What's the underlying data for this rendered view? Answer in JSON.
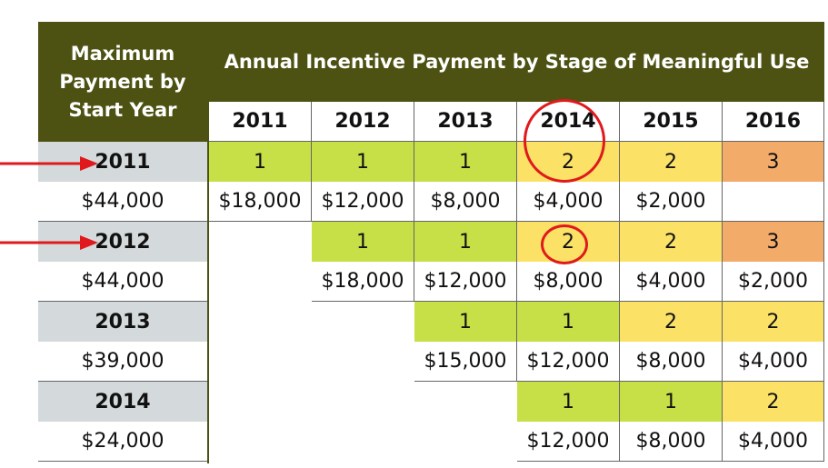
{
  "header": {
    "corner_label": "Maximum Payment by Start Year",
    "corner_lines": [
      "Maximum",
      "Payment by",
      "Start Year"
    ],
    "title": "Annual Incentive Payment by Stage of Meaningful Use",
    "years": [
      "2011",
      "2012",
      "2013",
      "2014",
      "2015",
      "2016"
    ]
  },
  "rows": [
    {
      "start_year": "2011",
      "max_payment": "$44,000",
      "stages": [
        "1",
        "1",
        "1",
        "2",
        "2",
        "3"
      ],
      "payments": [
        "$18,000",
        "$12,000",
        "$8,000",
        "$4,000",
        "$2,000",
        ""
      ]
    },
    {
      "start_year": "2012",
      "max_payment": "$44,000",
      "stages": [
        "",
        "1",
        "1",
        "2",
        "2",
        "3"
      ],
      "payments": [
        "",
        "$18,000",
        "$12,000",
        "$8,000",
        "$4,000",
        "$2,000"
      ]
    },
    {
      "start_year": "2013",
      "max_payment": "$39,000",
      "stages": [
        "",
        "",
        "1",
        "1",
        "2",
        "2"
      ],
      "payments": [
        "",
        "",
        "$15,000",
        "$12,000",
        "$8,000",
        "$4,000"
      ]
    },
    {
      "start_year": "2014",
      "max_payment": "$24,000",
      "stages": [
        "",
        "",
        "",
        "1",
        "1",
        "2"
      ],
      "payments": [
        "",
        "",
        "",
        "$12,000",
        "$8,000",
        "$4,000"
      ]
    }
  ],
  "colors": {
    "header_olive": "#4d5213",
    "stage_1": "#c7e048",
    "stage_2": "#fbe267",
    "stage_3": "#f3ab6a",
    "start_year_bg": "#d4dadb",
    "annotation_red": "#e0191c"
  },
  "annotations": {
    "arrows": [
      "arrow pointing to 2011",
      "arrow pointing to 2012"
    ],
    "circles": [
      "2014 column header and 2011 stage 2",
      "2012 stage 2 in 2014"
    ]
  }
}
